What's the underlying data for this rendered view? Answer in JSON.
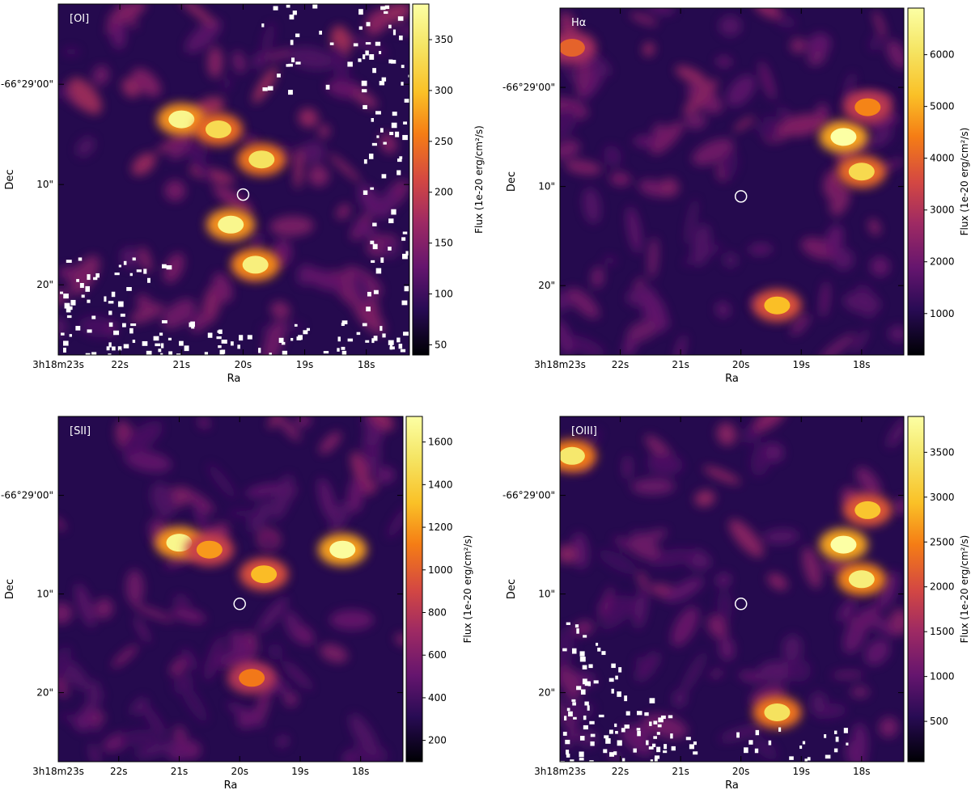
{
  "figure": {
    "colormap": "inferno",
    "mask_color": "#ffffff",
    "ra_axis_label": "Ra",
    "dec_axis_label": "Dec",
    "colorbar_label": "Flux (1e-20 erg/cm²/s)"
  },
  "chart_data": [
    {
      "type": "heatmap",
      "panel_label": "[OI]",
      "xlabel": "Ra",
      "ylabel": "Dec",
      "x_ticks": [
        "3h18m23s",
        "22s",
        "21s",
        "20s",
        "19s",
        "18s"
      ],
      "y_ticks": [
        "-66°29'00\"",
        "10\"",
        "20\""
      ],
      "colorbar": {
        "label": "Flux (1e-20 erg/cm²/s)",
        "min": 40,
        "max": 385,
        "ticks": [
          50,
          100,
          150,
          200,
          250,
          300,
          350
        ]
      },
      "masked_regions": "lower-left corner, bottom edge, right edge and scattered patches near top",
      "bright_features": [
        {
          "ra_s": 21.0,
          "dec_off": 3.5,
          "flux": 370
        },
        {
          "ra_s": 20.4,
          "dec_off": 4.5,
          "flux": 330
        },
        {
          "ra_s": 19.7,
          "dec_off": 7.5,
          "flux": 340
        },
        {
          "ra_s": 20.2,
          "dec_off": 14.0,
          "flux": 370
        },
        {
          "ra_s": 19.8,
          "dec_off": 18.0,
          "flux": 360
        }
      ],
      "marker": {
        "shape": "circle",
        "ra_s": 20.0,
        "dec_off": 11.0
      }
    },
    {
      "type": "heatmap",
      "panel_label": "Hα",
      "xlabel": "Ra",
      "ylabel": "Dec",
      "x_ticks": [
        "3h18m23s",
        "22s",
        "21s",
        "20s",
        "19s",
        "18s"
      ],
      "y_ticks": [
        "-66°29'00\"",
        "10\"",
        "20\""
      ],
      "colorbar": {
        "label": "Flux (1e-20 erg/cm²/s)",
        "min": 200,
        "max": 6900,
        "ticks": [
          1000,
          2000,
          3000,
          4000,
          5000,
          6000
        ]
      },
      "masked_regions": "none",
      "bright_features": [
        {
          "ra_s": 18.3,
          "dec_off": 5.0,
          "flux": 6900
        },
        {
          "ra_s": 18.0,
          "dec_off": 8.5,
          "flux": 5800
        },
        {
          "ra_s": 17.9,
          "dec_off": 2.0,
          "flux": 4500
        },
        {
          "ra_s": 19.4,
          "dec_off": 22.0,
          "flux": 5200
        },
        {
          "ra_s": 22.8,
          "dec_off": -4.0,
          "flux": 4000
        }
      ],
      "marker": {
        "shape": "circle",
        "ra_s": 20.0,
        "dec_off": 11.0
      }
    },
    {
      "type": "heatmap",
      "panel_label": "[SII]",
      "xlabel": "Ra",
      "ylabel": "Dec",
      "x_ticks": [
        "3h18m23s",
        "22s",
        "21s",
        "20s",
        "19s",
        "18s"
      ],
      "y_ticks": [
        "-66°29'00\"",
        "10\"",
        "20\""
      ],
      "colorbar": {
        "label": "Flux (1e-20 erg/cm²/s)",
        "min": 100,
        "max": 1720,
        "ticks": [
          200,
          400,
          600,
          800,
          1000,
          1200,
          1400,
          1600
        ]
      },
      "masked_regions": "none",
      "bright_features": [
        {
          "ra_s": 18.3,
          "dec_off": 5.5,
          "flux": 1700
        },
        {
          "ra_s": 21.0,
          "dec_off": 4.8,
          "flux": 1650
        },
        {
          "ra_s": 20.5,
          "dec_off": 5.5,
          "flux": 1200
        },
        {
          "ra_s": 19.6,
          "dec_off": 8.0,
          "flux": 1300
        },
        {
          "ra_s": 19.8,
          "dec_off": 18.5,
          "flux": 1100
        }
      ],
      "marker": {
        "shape": "circle",
        "ra_s": 20.0,
        "dec_off": 11.0
      }
    },
    {
      "type": "heatmap",
      "panel_label": "[OIII]",
      "xlabel": "Ra",
      "ylabel": "Dec",
      "x_ticks": [
        "3h18m23s",
        "22s",
        "21s",
        "20s",
        "19s",
        "18s"
      ],
      "y_ticks": [
        "-66°29'00\"",
        "10\"",
        "20\""
      ],
      "colorbar": {
        "label": "Flux (1e-20 erg/cm²/s)",
        "min": 50,
        "max": 3900,
        "ticks": [
          500,
          1000,
          1500,
          2000,
          2500,
          3000,
          3500
        ]
      },
      "masked_regions": "lower-left triangle and scattered patches along bottom and left edge",
      "bright_features": [
        {
          "ra_s": 18.3,
          "dec_off": 5.0,
          "flux": 3900
        },
        {
          "ra_s": 18.0,
          "dec_off": 8.5,
          "flux": 3600
        },
        {
          "ra_s": 17.9,
          "dec_off": 1.5,
          "flux": 3000
        },
        {
          "ra_s": 19.4,
          "dec_off": 22.0,
          "flux": 3400
        },
        {
          "ra_s": 22.8,
          "dec_off": -4.0,
          "flux": 3500
        }
      ],
      "marker": {
        "shape": "circle",
        "ra_s": 20.0,
        "dec_off": 11.0
      }
    }
  ]
}
